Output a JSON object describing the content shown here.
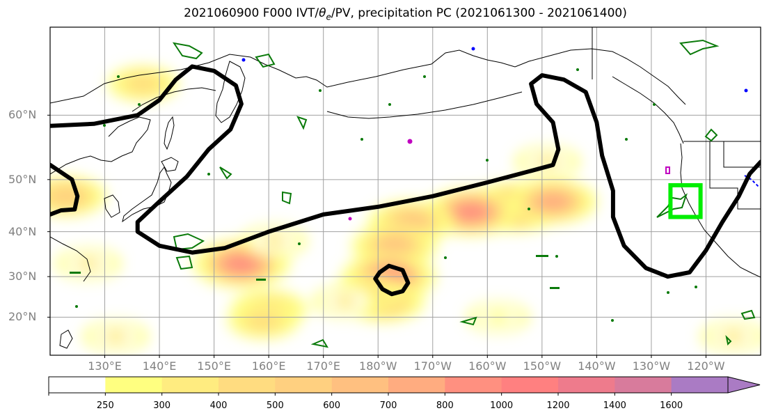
{
  "title": {
    "prefix": "2021060900 F000 IVT/",
    "theta": "θ",
    "theta_sub": "e",
    "suffix": "/PV, precipitation PC (2021061300 - 2021061400)"
  },
  "chart_data": {
    "type": "heatmap",
    "map_extent": {
      "lon": [
        120,
        250
      ],
      "lat": [
        10,
        70
      ]
    },
    "latitude_ticks": [
      {
        "lat": 60,
        "label": "60°N"
      },
      {
        "lat": 50,
        "label": "50°N"
      },
      {
        "lat": 40,
        "label": "40°N"
      },
      {
        "lat": 30,
        "label": "30°N"
      },
      {
        "lat": 20,
        "label": "20°N"
      }
    ],
    "longitude_ticks": [
      {
        "lon": 130,
        "label": "130°E"
      },
      {
        "lon": 140,
        "label": "140°E"
      },
      {
        "lon": 150,
        "label": "150°E"
      },
      {
        "lon": 160,
        "label": "160°E"
      },
      {
        "lon": 170,
        "label": "170°E"
      },
      {
        "lon": 180,
        "label": "180°W"
      },
      {
        "lon": 190,
        "label": "170°W"
      },
      {
        "lon": 200,
        "label": "160°W"
      },
      {
        "lon": 210,
        "label": "150°W"
      },
      {
        "lon": 220,
        "label": "140°W"
      },
      {
        "lon": 230,
        "label": "130°W"
      },
      {
        "lon": 240,
        "label": "120°W"
      }
    ],
    "grid": true,
    "colorbar": {
      "boundaries": [
        0,
        250,
        300,
        400,
        500,
        600,
        700,
        800,
        1000,
        1200,
        1400,
        1600
      ],
      "tick_labels": [
        "250",
        "300",
        "400",
        "500",
        "600",
        "700",
        "800",
        "1000",
        "1200",
        "1400",
        "1600"
      ],
      "colors": [
        "#ffffff",
        "#ffff80",
        "#ffec80",
        "#ffdc80",
        "#ffd080",
        "#ffc080",
        "#ffac80",
        "#ff9080",
        "#ff8080",
        "#ee7b8c",
        "#d87b9c",
        "#aa7bc4"
      ],
      "extend": "max",
      "orientation": "horizontal"
    },
    "ivt_regions": [
      {
        "lon": 205,
        "lat": 45,
        "value": 900
      },
      {
        "lon": 197,
        "lat": 44,
        "value": 800
      },
      {
        "lon": 212,
        "lat": 46,
        "value": 700
      },
      {
        "lon": 186,
        "lat": 42,
        "value": 650
      },
      {
        "lon": 183,
        "lat": 37,
        "value": 650
      },
      {
        "lon": 182,
        "lat": 30,
        "value": 800
      },
      {
        "lon": 181,
        "lat": 24,
        "value": 600
      },
      {
        "lon": 178,
        "lat": 26,
        "value": 400
      },
      {
        "lon": 174,
        "lat": 24,
        "value": 300
      },
      {
        "lon": 155,
        "lat": 33,
        "value": 850
      },
      {
        "lon": 161,
        "lat": 38,
        "value": 300
      },
      {
        "lon": 160,
        "lat": 22,
        "value": 500
      },
      {
        "lon": 159,
        "lat": 19,
        "value": 400
      },
      {
        "lon": 123,
        "lat": 47,
        "value": 550
      },
      {
        "lon": 137,
        "lat": 64,
        "value": 400
      },
      {
        "lon": 127,
        "lat": 33,
        "value": 300
      },
      {
        "lon": 132,
        "lat": 15,
        "value": 300
      },
      {
        "lon": 202,
        "lat": 20,
        "value": 250
      },
      {
        "lon": 211,
        "lat": 53,
        "value": 300
      },
      {
        "lon": 245,
        "lat": 15,
        "value": 300
      }
    ],
    "theta_e_contours": [
      {
        "points": [
          [
            120,
            58.5
          ],
          [
            128,
            58.8
          ],
          [
            136,
            60
          ],
          [
            140,
            62
          ],
          [
            143,
            64.5
          ],
          [
            146,
            66
          ],
          [
            150,
            65.5
          ],
          [
            154,
            63.8
          ],
          [
            155,
            61.5
          ],
          [
            153,
            58
          ],
          [
            149,
            55
          ],
          [
            145,
            50.5
          ],
          [
            140,
            46
          ],
          [
            136,
            42
          ],
          [
            136,
            40
          ],
          [
            140,
            37
          ],
          [
            146,
            35.5
          ],
          [
            152,
            36.5
          ],
          [
            160,
            40
          ],
          [
            170,
            43.5
          ],
          [
            180,
            45
          ],
          [
            190,
            47
          ],
          [
            200,
            49.5
          ],
          [
            208,
            51.5
          ],
          [
            212,
            52.5
          ],
          [
            213,
            55
          ],
          [
            212,
            59
          ],
          [
            209,
            61.5
          ],
          [
            208,
            64
          ],
          [
            210,
            65
          ],
          [
            214,
            64.5
          ],
          [
            218,
            63
          ],
          [
            220,
            59
          ],
          [
            221,
            54
          ],
          [
            223,
            48
          ],
          [
            223,
            43
          ],
          [
            225,
            37
          ],
          [
            229,
            32
          ],
          [
            233,
            30
          ],
          [
            237,
            31
          ],
          [
            240,
            36
          ],
          [
            243,
            42
          ],
          [
            246,
            47
          ],
          [
            248,
            51
          ],
          [
            250,
            53
          ]
        ]
      },
      {
        "points": [
          [
            120,
            52.5
          ],
          [
            124,
            50
          ],
          [
            125,
            47
          ],
          [
            124.5,
            44.5
          ],
          [
            122,
            44.3
          ],
          [
            120,
            43.5
          ]
        ]
      },
      {
        "points": [
          [
            180.3,
            31
          ],
          [
            182,
            32.5
          ],
          [
            184.5,
            31.5
          ],
          [
            185.5,
            28.5
          ],
          [
            184.5,
            26.5
          ],
          [
            182.5,
            25.8
          ],
          [
            180.8,
            27
          ],
          [
            179.5,
            29.5
          ],
          [
            180.3,
            31
          ]
        ]
      }
    ],
    "highlight_box": {
      "lon": [
        233.5,
        239
      ],
      "lat": [
        43,
        49
      ]
    }
  }
}
